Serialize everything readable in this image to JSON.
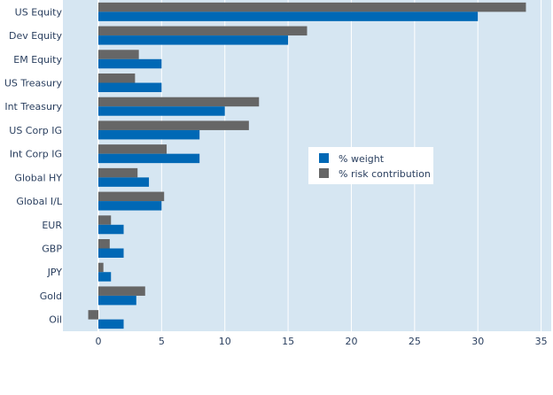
{
  "chart_data": {
    "type": "bar",
    "orientation": "horizontal",
    "title": "",
    "xlabel": "",
    "ylabel": "",
    "categories": [
      "US Equity",
      "Dev Equity",
      "EM Equity",
      "US Treasury",
      "Int Treasury",
      "US Corp IG",
      "Int Corp IG",
      "Global HY",
      "Global I/L",
      "EUR",
      "GBP",
      "JPY",
      "Gold",
      "Oil"
    ],
    "series": [
      {
        "name": "% weight",
        "color": "#0068b5",
        "values": [
          30,
          15,
          5,
          5,
          10,
          8,
          8,
          4,
          5,
          2,
          2,
          1,
          3,
          2
        ]
      },
      {
        "name": "% risk contribution",
        "color": "#666666",
        "values": [
          33.8,
          16.5,
          3.2,
          2.9,
          12.7,
          11.9,
          5.4,
          3.1,
          5.2,
          1.0,
          0.9,
          0.4,
          3.7,
          -0.8
        ]
      }
    ],
    "xlim": [
      -2.8,
      35.8
    ],
    "xticks": [
      0,
      5,
      10,
      15,
      20,
      25,
      30,
      35
    ],
    "grid": true,
    "legend_position": "center-right",
    "plot_background": "#d6e6f2"
  }
}
